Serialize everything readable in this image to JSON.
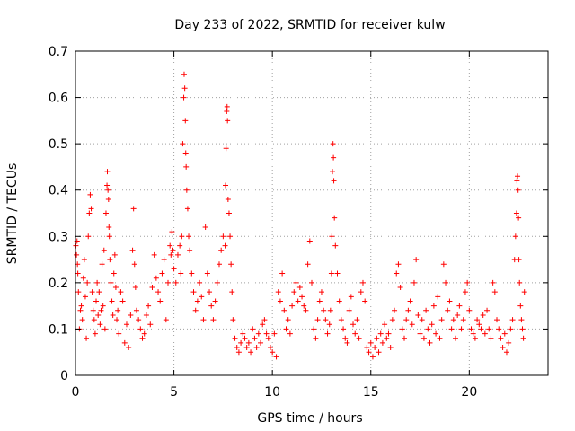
{
  "chart_data": {
    "type": "scatter",
    "title": "Day 233 of 2022, SRMTID for receiver kulw",
    "xlabel": "GPS time / hours",
    "ylabel": "SRMTID / TECUs",
    "xlim": [
      0,
      24
    ],
    "ylim": [
      0,
      0.7
    ],
    "xticks": [
      0,
      5,
      10,
      15,
      20
    ],
    "xtick_labels": [
      "0",
      "5",
      "10",
      "15",
      "20"
    ],
    "yticks": [
      0,
      0.1,
      0.2,
      0.3,
      0.4,
      0.5,
      0.6,
      0.7
    ],
    "ytick_labels": [
      "0",
      "0.1",
      "0.2",
      "0.3",
      "0.4",
      "0.5",
      "0.6",
      "0.7"
    ],
    "grid": true,
    "marker": "+",
    "color": "#ff0000",
    "series": [
      {
        "name": "SRMTID",
        "x": [
          0.02,
          0.05,
          0.08,
          0.1,
          0.12,
          0.15,
          0.2,
          0.25,
          0.3,
          0.35,
          0.4,
          0.45,
          0.5,
          0.55,
          0.6,
          0.65,
          0.7,
          0.75,
          0.8,
          0.85,
          0.9,
          0.95,
          1.0,
          1.05,
          1.1,
          1.15,
          1.2,
          1.25,
          1.3,
          1.35,
          1.4,
          1.45,
          1.5,
          1.55,
          1.6,
          1.62,
          1.65,
          1.68,
          1.7,
          1.72,
          1.75,
          1.8,
          1.85,
          1.9,
          1.95,
          2.0,
          2.05,
          2.1,
          2.15,
          2.2,
          2.3,
          2.4,
          2.5,
          2.6,
          2.7,
          2.8,
          2.9,
          2.95,
          3.0,
          3.05,
          3.1,
          3.2,
          3.3,
          3.4,
          3.5,
          3.6,
          3.7,
          3.8,
          3.9,
          4.0,
          4.1,
          4.2,
          4.3,
          4.4,
          4.5,
          4.6,
          4.7,
          4.8,
          4.85,
          4.9,
          4.95,
          5.0,
          5.1,
          5.2,
          5.3,
          5.35,
          5.4,
          5.45,
          5.5,
          5.52,
          5.55,
          5.58,
          5.6,
          5.62,
          5.65,
          5.7,
          5.75,
          5.8,
          5.9,
          6.0,
          6.1,
          6.2,
          6.3,
          6.4,
          6.5,
          6.6,
          6.7,
          6.8,
          6.9,
          7.0,
          7.1,
          7.2,
          7.3,
          7.4,
          7.5,
          7.6,
          7.62,
          7.65,
          7.68,
          7.7,
          7.72,
          7.75,
          7.8,
          7.85,
          7.9,
          7.95,
          8.0,
          8.1,
          8.2,
          8.3,
          8.4,
          8.5,
          8.6,
          8.7,
          8.8,
          8.9,
          9.0,
          9.1,
          9.2,
          9.3,
          9.4,
          9.5,
          9.6,
          9.7,
          9.8,
          9.9,
          10.0,
          10.1,
          10.2,
          10.3,
          10.4,
          10.5,
          10.6,
          10.7,
          10.8,
          10.9,
          11.0,
          11.1,
          11.2,
          11.3,
          11.4,
          11.5,
          11.6,
          11.7,
          11.8,
          11.9,
          12.0,
          12.1,
          12.2,
          12.3,
          12.4,
          12.5,
          12.6,
          12.7,
          12.8,
          12.9,
          12.95,
          13.0,
          13.02,
          13.05,
          13.08,
          13.1,
          13.12,
          13.15,
          13.2,
          13.3,
          13.4,
          13.5,
          13.6,
          13.7,
          13.8,
          13.9,
          14.0,
          14.1,
          14.2,
          14.3,
          14.4,
          14.5,
          14.6,
          14.7,
          14.8,
          14.9,
          15.0,
          15.1,
          15.2,
          15.3,
          15.4,
          15.5,
          15.6,
          15.7,
          15.8,
          15.9,
          16.0,
          16.1,
          16.2,
          16.3,
          16.4,
          16.5,
          16.6,
          16.7,
          16.8,
          16.9,
          17.0,
          17.1,
          17.2,
          17.3,
          17.4,
          17.5,
          17.6,
          17.7,
          17.8,
          17.9,
          18.0,
          18.1,
          18.2,
          18.3,
          18.4,
          18.5,
          18.6,
          18.7,
          18.8,
          18.9,
          19.0,
          19.1,
          19.2,
          19.3,
          19.4,
          19.5,
          19.6,
          19.7,
          19.8,
          19.9,
          20.0,
          20.1,
          20.2,
          20.3,
          20.4,
          20.5,
          20.6,
          20.7,
          20.8,
          20.9,
          21.0,
          21.1,
          21.2,
          21.3,
          21.4,
          21.5,
          21.6,
          21.7,
          21.8,
          21.9,
          22.0,
          22.1,
          22.2,
          22.3,
          22.35,
          22.4,
          22.42,
          22.45,
          22.48,
          22.5,
          22.52,
          22.55,
          22.6,
          22.65,
          22.7,
          22.75,
          22.8
        ],
        "y": [
          0.28,
          0.26,
          0.29,
          0.24,
          0.22,
          0.18,
          0.1,
          0.14,
          0.15,
          0.12,
          0.21,
          0.25,
          0.17,
          0.08,
          0.2,
          0.3,
          0.35,
          0.39,
          0.36,
          0.18,
          0.14,
          0.12,
          0.09,
          0.16,
          0.2,
          0.13,
          0.18,
          0.11,
          0.14,
          0.24,
          0.15,
          0.27,
          0.1,
          0.35,
          0.41,
          0.44,
          0.4,
          0.38,
          0.32,
          0.3,
          0.25,
          0.2,
          0.16,
          0.13,
          0.22,
          0.26,
          0.19,
          0.12,
          0.14,
          0.09,
          0.18,
          0.16,
          0.07,
          0.11,
          0.06,
          0.13,
          0.27,
          0.36,
          0.24,
          0.19,
          0.14,
          0.12,
          0.1,
          0.08,
          0.09,
          0.13,
          0.15,
          0.11,
          0.19,
          0.26,
          0.21,
          0.18,
          0.16,
          0.22,
          0.25,
          0.12,
          0.2,
          0.28,
          0.26,
          0.31,
          0.27,
          0.23,
          0.2,
          0.26,
          0.28,
          0.22,
          0.3,
          0.5,
          0.6,
          0.65,
          0.62,
          0.55,
          0.48,
          0.45,
          0.4,
          0.36,
          0.3,
          0.27,
          0.22,
          0.18,
          0.14,
          0.16,
          0.2,
          0.17,
          0.12,
          0.32,
          0.22,
          0.18,
          0.15,
          0.12,
          0.16,
          0.2,
          0.24,
          0.27,
          0.3,
          0.28,
          0.41,
          0.49,
          0.57,
          0.58,
          0.55,
          0.38,
          0.35,
          0.3,
          0.24,
          0.18,
          0.12,
          0.08,
          0.06,
          0.05,
          0.07,
          0.09,
          0.08,
          0.06,
          0.07,
          0.05,
          0.1,
          0.08,
          0.06,
          0.09,
          0.07,
          0.11,
          0.12,
          0.09,
          0.08,
          0.06,
          0.05,
          0.09,
          0.04,
          0.18,
          0.16,
          0.22,
          0.14,
          0.1,
          0.12,
          0.09,
          0.15,
          0.18,
          0.2,
          0.16,
          0.19,
          0.17,
          0.15,
          0.14,
          0.24,
          0.29,
          0.2,
          0.1,
          0.08,
          0.12,
          0.16,
          0.18,
          0.14,
          0.12,
          0.09,
          0.11,
          0.14,
          0.22,
          0.3,
          0.44,
          0.5,
          0.47,
          0.42,
          0.34,
          0.28,
          0.22,
          0.16,
          0.12,
          0.1,
          0.08,
          0.07,
          0.14,
          0.17,
          0.11,
          0.09,
          0.12,
          0.08,
          0.18,
          0.2,
          0.16,
          0.06,
          0.05,
          0.07,
          0.04,
          0.06,
          0.08,
          0.05,
          0.09,
          0.07,
          0.11,
          0.08,
          0.09,
          0.06,
          0.12,
          0.14,
          0.22,
          0.24,
          0.19,
          0.1,
          0.08,
          0.12,
          0.14,
          0.16,
          0.11,
          0.2,
          0.25,
          0.13,
          0.09,
          0.12,
          0.08,
          0.14,
          0.1,
          0.07,
          0.11,
          0.15,
          0.09,
          0.17,
          0.08,
          0.12,
          0.24,
          0.2,
          0.14,
          0.16,
          0.1,
          0.12,
          0.08,
          0.13,
          0.15,
          0.1,
          0.12,
          0.18,
          0.2,
          0.14,
          0.1,
          0.09,
          0.08,
          0.12,
          0.11,
          0.1,
          0.13,
          0.09,
          0.14,
          0.1,
          0.08,
          0.2,
          0.18,
          0.12,
          0.1,
          0.08,
          0.06,
          0.09,
          0.05,
          0.07,
          0.1,
          0.12,
          0.25,
          0.3,
          0.35,
          0.42,
          0.43,
          0.4,
          0.34,
          0.25,
          0.2,
          0.15,
          0.12,
          0.1,
          0.08,
          0.18
        ]
      }
    ]
  }
}
